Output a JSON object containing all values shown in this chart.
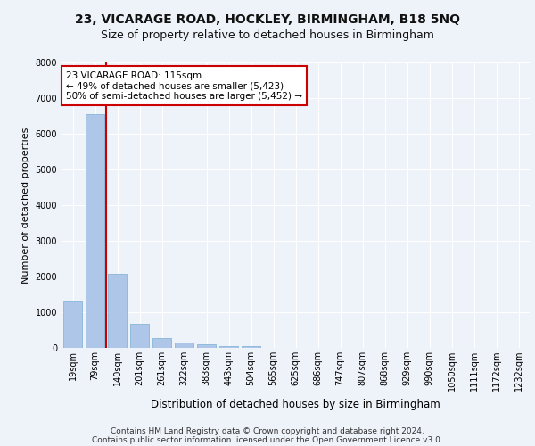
{
  "title_line1": "23, VICARAGE ROAD, HOCKLEY, BIRMINGHAM, B18 5NQ",
  "title_line2": "Size of property relative to detached houses in Birmingham",
  "xlabel": "Distribution of detached houses by size in Birmingham",
  "ylabel": "Number of detached properties",
  "bar_labels": [
    "19sqm",
    "79sqm",
    "140sqm",
    "201sqm",
    "261sqm",
    "322sqm",
    "383sqm",
    "443sqm",
    "504sqm",
    "565sqm",
    "625sqm",
    "686sqm",
    "747sqm",
    "807sqm",
    "868sqm",
    "929sqm",
    "990sqm",
    "1050sqm",
    "1111sqm",
    "1172sqm",
    "1232sqm"
  ],
  "bar_values": [
    1300,
    6550,
    2080,
    680,
    280,
    150,
    100,
    60,
    50,
    0,
    0,
    0,
    0,
    0,
    0,
    0,
    0,
    0,
    0,
    0,
    0
  ],
  "bar_color": "#aec6e8",
  "bar_edge_color": "#7aafd4",
  "annotation_text": "23 VICARAGE ROAD: 115sqm\n← 49% of detached houses are smaller (5,423)\n50% of semi-detached houses are larger (5,452) →",
  "annotation_box_color": "#cc0000",
  "vline_x": 1.5,
  "vline_color": "#cc0000",
  "ylim": [
    0,
    8000
  ],
  "yticks": [
    0,
    1000,
    2000,
    3000,
    4000,
    5000,
    6000,
    7000,
    8000
  ],
  "footer_line1": "Contains HM Land Registry data © Crown copyright and database right 2024.",
  "footer_line2": "Contains public sector information licensed under the Open Government Licence v3.0.",
  "background_color": "#eef2f9",
  "plot_background": "#eef2f9",
  "grid_color": "#ffffff",
  "title1_fontsize": 10,
  "title2_fontsize": 9,
  "xlabel_fontsize": 8.5,
  "ylabel_fontsize": 8,
  "tick_fontsize": 7,
  "annotation_fontsize": 7.5,
  "footer_fontsize": 6.5
}
